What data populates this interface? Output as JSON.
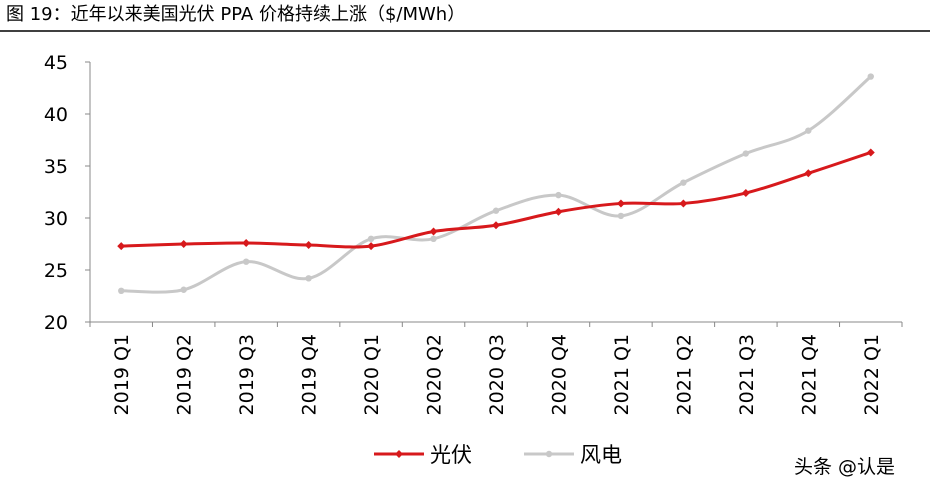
{
  "chart_data": {
    "type": "line",
    "title": "图 19：近年以来美国光伏 PPA 价格持续上涨（$/MWh）",
    "categories": [
      "2019 Q1",
      "2019 Q2",
      "2019 Q3",
      "2019 Q4",
      "2020 Q1",
      "2020 Q2",
      "2020 Q3",
      "2020 Q4",
      "2021 Q1",
      "2021 Q2",
      "2021 Q3",
      "2021 Q4",
      "2022 Q1"
    ],
    "series": [
      {
        "name": "光伏",
        "color": "#d7191c",
        "values": [
          27.3,
          27.5,
          27.6,
          27.4,
          27.3,
          28.7,
          29.3,
          30.6,
          31.4,
          31.4,
          32.4,
          34.3,
          36.3
        ]
      },
      {
        "name": "风电",
        "color": "#c8c8c8",
        "values": [
          23.0,
          23.1,
          25.8,
          24.2,
          28.0,
          28.0,
          30.7,
          32.2,
          30.2,
          33.4,
          36.2,
          38.4,
          43.6
        ]
      }
    ],
    "ylim": [
      20,
      45
    ],
    "yticks": [
      20,
      25,
      30,
      35,
      40,
      45
    ],
    "legend": "bottom",
    "watermark": "头条 @认是"
  }
}
